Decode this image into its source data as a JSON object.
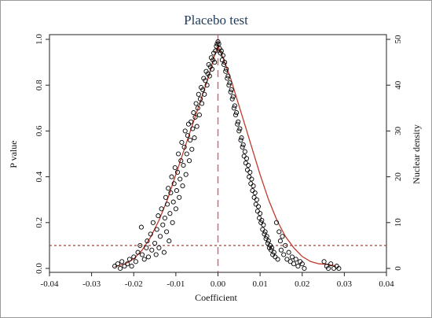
{
  "chart_data": {
    "type": "scatter",
    "title": "Placebo test",
    "xlabel": "Coefficient",
    "ylabel": "P value",
    "y2label": "Nuclear density",
    "xlim": [
      -0.04,
      0.04
    ],
    "ylim": [
      0.0,
      1.0
    ],
    "y2lim": [
      0,
      50
    ],
    "x_ticks": [
      "-0.04",
      "-0.03",
      "-0.02",
      "-0.01",
      "0.00",
      "0.01",
      "0.02",
      "0.03",
      "0.04"
    ],
    "y_ticks": [
      "0.0",
      "0.2",
      "0.4",
      "0.6",
      "0.8",
      "1.0"
    ],
    "y2_ticks": [
      "0",
      "10",
      "20",
      "30",
      "40",
      "50"
    ],
    "reference_lines": {
      "vertical_x": 0.0,
      "horizontal_y": 0.1
    },
    "grid": false,
    "series": [
      {
        "type": "scatter",
        "marker": "hollow-circle",
        "points": [
          [
            -0.0245,
            0.01
          ],
          [
            -0.0238,
            0.02
          ],
          [
            -0.0232,
            0.0
          ],
          [
            -0.0228,
            0.03
          ],
          [
            -0.0222,
            0.01
          ],
          [
            -0.0215,
            0.02
          ],
          [
            -0.021,
            0.04
          ],
          [
            -0.0205,
            0.01
          ],
          [
            -0.02,
            0.05
          ],
          [
            -0.0195,
            0.03
          ],
          [
            -0.019,
            0.07
          ],
          [
            -0.0185,
            0.1
          ],
          [
            -0.0182,
            0.18
          ],
          [
            -0.018,
            0.06
          ],
          [
            -0.0175,
            0.04
          ],
          [
            -0.017,
            0.09
          ],
          [
            -0.0168,
            0.12
          ],
          [
            -0.0165,
            0.05
          ],
          [
            -0.016,
            0.15
          ],
          [
            -0.0157,
            0.08
          ],
          [
            -0.0154,
            0.2
          ],
          [
            -0.015,
            0.11
          ],
          [
            -0.0147,
            0.06
          ],
          [
            -0.0145,
            0.17
          ],
          [
            -0.0142,
            0.23
          ],
          [
            -0.014,
            0.09
          ],
          [
            -0.0137,
            0.14
          ],
          [
            -0.0134,
            0.26
          ],
          [
            -0.0131,
            0.19
          ],
          [
            -0.0128,
            0.07
          ],
          [
            -0.0126,
            0.22
          ],
          [
            -0.0124,
            0.31
          ],
          [
            -0.0122,
            0.16
          ],
          [
            -0.012,
            0.28
          ],
          [
            -0.0118,
            0.35
          ],
          [
            -0.0116,
            0.12
          ],
          [
            -0.0114,
            0.24
          ],
          [
            -0.0112,
            0.33
          ],
          [
            -0.011,
            0.4
          ],
          [
            -0.0108,
            0.2
          ],
          [
            -0.0106,
            0.29
          ],
          [
            -0.0104,
            0.37
          ],
          [
            -0.0102,
            0.44
          ],
          [
            -0.01,
            0.26
          ],
          [
            -0.0098,
            0.34
          ],
          [
            -0.0096,
            0.42
          ],
          [
            -0.0094,
            0.5
          ],
          [
            -0.0092,
            0.31
          ],
          [
            -0.009,
            0.39
          ],
          [
            -0.0088,
            0.47
          ],
          [
            -0.0086,
            0.55
          ],
          [
            -0.0084,
            0.36
          ],
          [
            -0.0082,
            0.45
          ],
          [
            -0.008,
            0.53
          ],
          [
            -0.0078,
            0.6
          ],
          [
            -0.0076,
            0.41
          ],
          [
            -0.0074,
            0.5
          ],
          [
            -0.0072,
            0.58
          ],
          [
            -0.007,
            0.63
          ],
          [
            -0.0068,
            0.47
          ],
          [
            -0.0066,
            0.56
          ],
          [
            -0.0064,
            0.64
          ],
          [
            -0.0062,
            0.52
          ],
          [
            -0.006,
            0.61
          ],
          [
            -0.0058,
            0.68
          ],
          [
            -0.0056,
            0.57
          ],
          [
            -0.0054,
            0.66
          ],
          [
            -0.0052,
            0.72
          ],
          [
            -0.005,
            0.62
          ],
          [
            -0.0048,
            0.7
          ],
          [
            -0.0046,
            0.76
          ],
          [
            -0.0044,
            0.67
          ],
          [
            -0.0042,
            0.74
          ],
          [
            -0.004,
            0.79
          ],
          [
            -0.0038,
            0.72
          ],
          [
            -0.0036,
            0.78
          ],
          [
            -0.0034,
            0.83
          ],
          [
            -0.0032,
            0.76
          ],
          [
            -0.003,
            0.82
          ],
          [
            -0.0028,
            0.86
          ],
          [
            -0.0026,
            0.8
          ],
          [
            -0.0024,
            0.85
          ],
          [
            -0.0022,
            0.89
          ],
          [
            -0.002,
            0.84
          ],
          [
            -0.0018,
            0.88
          ],
          [
            -0.0016,
            0.92
          ],
          [
            -0.0014,
            0.87
          ],
          [
            -0.0012,
            0.91
          ],
          [
            -0.001,
            0.94
          ],
          [
            -0.0008,
            0.9
          ],
          [
            -0.0006,
            0.95
          ],
          [
            -0.0004,
            0.97
          ],
          [
            -0.0002,
            0.98
          ],
          [
            0.0,
            0.99
          ],
          [
            0.0002,
            0.98
          ],
          [
            0.0004,
            0.96
          ],
          [
            0.0006,
            0.94
          ],
          [
            0.0008,
            0.95
          ],
          [
            0.001,
            0.91
          ],
          [
            0.0012,
            0.93
          ],
          [
            0.0014,
            0.89
          ],
          [
            0.0016,
            0.9
          ],
          [
            0.0018,
            0.86
          ],
          [
            0.002,
            0.87
          ],
          [
            0.0022,
            0.83
          ],
          [
            0.0024,
            0.84
          ],
          [
            0.0026,
            0.8
          ],
          [
            0.0028,
            0.81
          ],
          [
            0.003,
            0.77
          ],
          [
            0.0032,
            0.78
          ],
          [
            0.0034,
            0.74
          ],
          [
            0.0036,
            0.75
          ],
          [
            0.0038,
            0.7
          ],
          [
            0.004,
            0.71
          ],
          [
            0.0042,
            0.67
          ],
          [
            0.0044,
            0.68
          ],
          [
            0.0046,
            0.63
          ],
          [
            0.0048,
            0.64
          ],
          [
            0.005,
            0.6
          ],
          [
            0.0052,
            0.61
          ],
          [
            0.0054,
            0.56
          ],
          [
            0.0056,
            0.57
          ],
          [
            0.0058,
            0.53
          ],
          [
            0.006,
            0.54
          ],
          [
            0.0062,
            0.49
          ],
          [
            0.0064,
            0.51
          ],
          [
            0.0066,
            0.46
          ],
          [
            0.0068,
            0.48
          ],
          [
            0.007,
            0.43
          ],
          [
            0.0072,
            0.45
          ],
          [
            0.0074,
            0.4
          ],
          [
            0.0076,
            0.42
          ],
          [
            0.0078,
            0.37
          ],
          [
            0.008,
            0.39
          ],
          [
            0.0082,
            0.34
          ],
          [
            0.0084,
            0.36
          ],
          [
            0.0086,
            0.31
          ],
          [
            0.0088,
            0.33
          ],
          [
            0.009,
            0.28
          ],
          [
            0.0092,
            0.3
          ],
          [
            0.0094,
            0.25
          ],
          [
            0.0096,
            0.27
          ],
          [
            0.0098,
            0.22
          ],
          [
            0.01,
            0.24
          ],
          [
            0.0102,
            0.2
          ],
          [
            0.0104,
            0.21
          ],
          [
            0.0106,
            0.17
          ],
          [
            0.0108,
            0.19
          ],
          [
            0.011,
            0.15
          ],
          [
            0.0112,
            0.16
          ],
          [
            0.0114,
            0.13
          ],
          [
            0.0116,
            0.14
          ],
          [
            0.0118,
            0.11
          ],
          [
            0.012,
            0.12
          ],
          [
            0.0122,
            0.09
          ],
          [
            0.0124,
            0.1
          ],
          [
            0.0126,
            0.08
          ],
          [
            0.0128,
            0.09
          ],
          [
            0.013,
            0.06
          ],
          [
            0.0133,
            0.07
          ],
          [
            0.0136,
            0.05
          ],
          [
            0.0139,
            0.2
          ],
          [
            0.0142,
            0.04
          ],
          [
            0.0145,
            0.16
          ],
          [
            0.0148,
            0.12
          ],
          [
            0.015,
            0.08
          ],
          [
            0.0153,
            0.14
          ],
          [
            0.0156,
            0.06
          ],
          [
            0.016,
            0.1
          ],
          [
            0.0164,
            0.04
          ],
          [
            0.0168,
            0.07
          ],
          [
            0.0172,
            0.03
          ],
          [
            0.0176,
            0.05
          ],
          [
            0.018,
            0.02
          ],
          [
            0.0185,
            0.04
          ],
          [
            0.019,
            0.01
          ],
          [
            0.0195,
            0.03
          ],
          [
            0.02,
            0.02
          ],
          [
            0.0205,
            0.0
          ],
          [
            0.0252,
            0.03
          ],
          [
            0.0258,
            0.01
          ],
          [
            0.0262,
            0.0
          ],
          [
            0.0268,
            0.02
          ],
          [
            0.0275,
            0.0
          ],
          [
            0.0282,
            0.01
          ],
          [
            0.0287,
            0.0
          ]
        ]
      },
      {
        "type": "line",
        "color": "#c0392b",
        "axis": "y2",
        "points": [
          [
            -0.0245,
            0.4
          ],
          [
            -0.022,
            1.0
          ],
          [
            -0.02,
            2.1
          ],
          [
            -0.018,
            4.0
          ],
          [
            -0.016,
            6.8
          ],
          [
            -0.014,
            10.5
          ],
          [
            -0.012,
            15.0
          ],
          [
            -0.01,
            20.5
          ],
          [
            -0.008,
            26.0
          ],
          [
            -0.006,
            31.5
          ],
          [
            -0.004,
            37.0
          ],
          [
            -0.002,
            42.5
          ],
          [
            -0.001,
            46.0
          ],
          [
            0.0,
            48.5
          ],
          [
            0.001,
            46.5
          ],
          [
            0.002,
            44.0
          ],
          [
            0.003,
            41.5
          ],
          [
            0.004,
            38.5
          ],
          [
            0.006,
            32.5
          ],
          [
            0.008,
            26.5
          ],
          [
            0.01,
            20.5
          ],
          [
            0.012,
            15.0
          ],
          [
            0.014,
            10.5
          ],
          [
            0.016,
            7.0
          ],
          [
            0.018,
            4.5
          ],
          [
            0.02,
            2.6
          ],
          [
            0.022,
            1.5
          ],
          [
            0.024,
            1.0
          ],
          [
            0.026,
            0.9
          ],
          [
            0.028,
            0.5
          ]
        ]
      }
    ]
  }
}
